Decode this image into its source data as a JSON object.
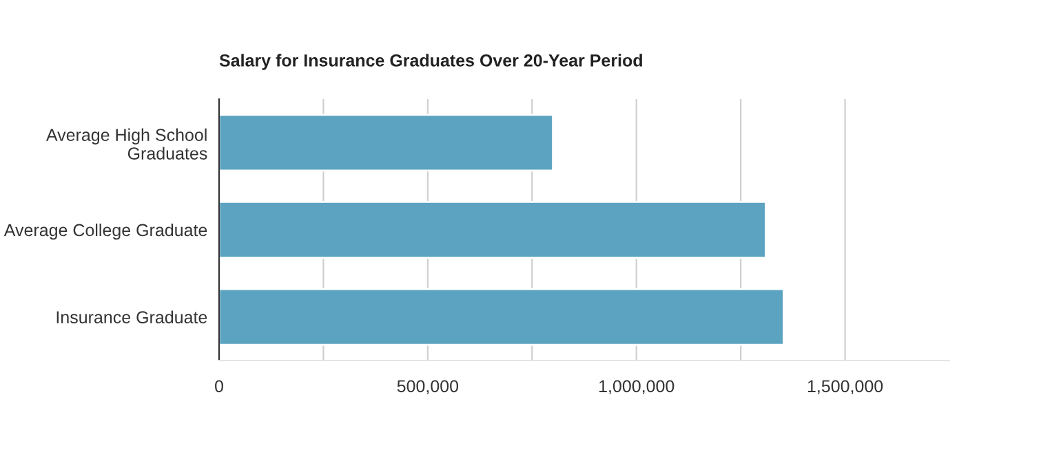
{
  "chart_data": {
    "type": "bar",
    "orientation": "horizontal",
    "title": "Salary for Insurance Graduates Over 20-Year Period",
    "categories": [
      "Average High School\nGraduates",
      "Average College Graduate",
      "Insurance Graduate"
    ],
    "values": [
      800000,
      1310000,
      1353000
    ],
    "color": "#5ba3c1",
    "xlim": [
      0,
      1750000
    ],
    "xticks": [
      {
        "value": 0,
        "label": "0"
      },
      {
        "value": 250000,
        "label": null
      },
      {
        "value": 500000,
        "label": "500,000"
      },
      {
        "value": 750000,
        "label": null
      },
      {
        "value": 1000000,
        "label": "1,000,000"
      },
      {
        "value": 1250000,
        "label": null
      },
      {
        "value": 1500000,
        "label": "1,500,000"
      }
    ],
    "grid": "x",
    "legend": false
  }
}
